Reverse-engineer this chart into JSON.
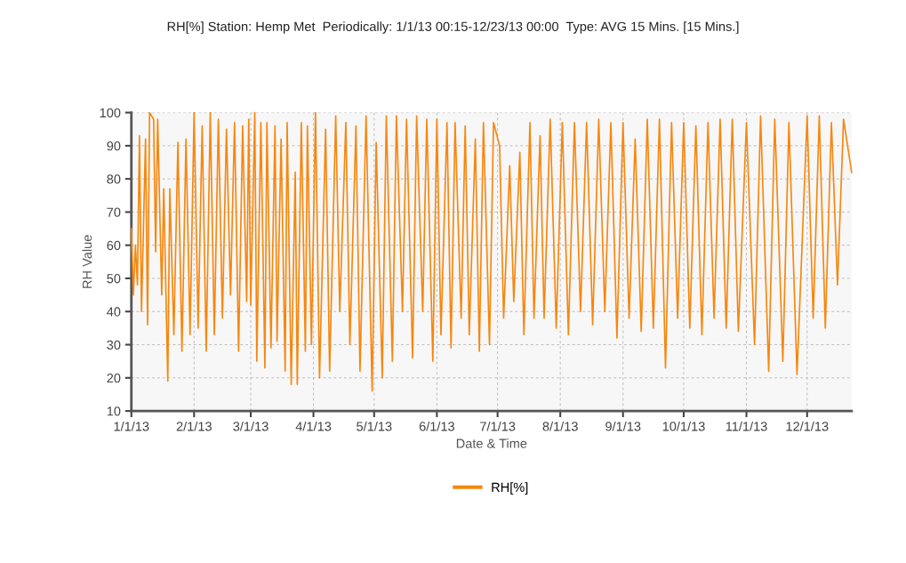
{
  "chart_data": {
    "type": "line",
    "title": "RH[%] Station: Hemp Met  Periodically: 1/1/13 00:15-12/23/13 00:00  Type: AVG 15 Mins. [15 Mins.]",
    "xlabel": "Date & Time",
    "ylabel": "RH Value",
    "x": [
      "2013-01-01",
      "2013-01-02",
      "2013-01-03",
      "2013-01-04",
      "2013-01-05",
      "2013-01-06",
      "2013-01-08",
      "2013-01-09",
      "2013-01-10",
      "2013-01-12",
      "2013-01-13",
      "2013-01-14",
      "2013-01-16",
      "2013-01-17",
      "2013-01-19",
      "2013-01-20",
      "2013-01-22",
      "2013-01-24",
      "2013-01-26",
      "2013-01-28",
      "2013-01-30",
      "2013-02-01",
      "2013-02-03",
      "2013-02-05",
      "2013-02-07",
      "2013-02-09",
      "2013-02-11",
      "2013-02-13",
      "2013-02-15",
      "2013-02-17",
      "2013-02-19",
      "2013-02-21",
      "2013-02-23",
      "2013-02-25",
      "2013-02-27",
      "2013-02-28",
      "2013-03-01",
      "2013-03-03",
      "2013-03-04",
      "2013-03-06",
      "2013-03-08",
      "2013-03-09",
      "2013-03-11",
      "2013-03-13",
      "2013-03-14",
      "2013-03-16",
      "2013-03-18",
      "2013-03-19",
      "2013-03-21",
      "2013-03-23",
      "2013-03-24",
      "2013-03-26",
      "2013-03-28",
      "2013-03-29",
      "2013-03-31",
      "2013-04-02",
      "2013-04-04",
      "2013-04-07",
      "2013-04-09",
      "2013-04-12",
      "2013-04-14",
      "2013-04-17",
      "2013-04-19",
      "2013-04-22",
      "2013-04-24",
      "2013-04-27",
      "2013-04-30",
      "2013-05-02",
      "2013-05-05",
      "2013-05-07",
      "2013-05-10",
      "2013-05-12",
      "2013-05-15",
      "2013-05-17",
      "2013-05-20",
      "2013-05-22",
      "2013-05-25",
      "2013-05-27",
      "2013-05-30",
      "2013-06-01",
      "2013-06-03",
      "2013-06-06",
      "2013-06-08",
      "2013-06-10",
      "2013-06-13",
      "2013-06-15",
      "2013-06-17",
      "2013-06-20",
      "2013-06-22",
      "2013-06-24",
      "2013-06-27",
      "2013-06-29",
      "2013-07-02",
      "2013-07-04",
      "2013-07-07",
      "2013-07-09",
      "2013-07-12",
      "2013-07-14",
      "2013-07-17",
      "2013-07-19",
      "2013-07-22",
      "2013-07-24",
      "2013-07-27",
      "2013-07-30",
      "2013-08-02",
      "2013-08-05",
      "2013-08-08",
      "2013-08-11",
      "2013-08-14",
      "2013-08-17",
      "2013-08-20",
      "2013-08-23",
      "2013-08-26",
      "2013-08-29",
      "2013-09-01",
      "2013-09-04",
      "2013-09-07",
      "2013-09-10",
      "2013-09-13",
      "2013-09-16",
      "2013-09-19",
      "2013-09-22",
      "2013-09-25",
      "2013-09-28",
      "2013-10-01",
      "2013-10-04",
      "2013-10-07",
      "2013-10-10",
      "2013-10-13",
      "2013-10-16",
      "2013-10-19",
      "2013-10-22",
      "2013-10-25",
      "2013-10-28",
      "2013-11-01",
      "2013-11-05",
      "2013-11-08",
      "2013-11-12",
      "2013-11-15",
      "2013-11-19",
      "2013-11-22",
      "2013-11-26",
      "2013-12-01",
      "2013-12-04",
      "2013-12-07",
      "2013-12-10",
      "2013-12-13",
      "2013-12-16",
      "2013-12-19",
      "2013-12-23"
    ],
    "series": [
      {
        "name": "RH[%]",
        "color": "#f7870f",
        "values": [
          65,
          45,
          60,
          48,
          93,
          40,
          92,
          36,
          100,
          98,
          58,
          98,
          45,
          77,
          19,
          77,
          33,
          91,
          28,
          92,
          33,
          100,
          35,
          96,
          28,
          100,
          33,
          98,
          38,
          95,
          45,
          97,
          28,
          96,
          43,
          98,
          42,
          100,
          25,
          97,
          23,
          97,
          29,
          96,
          31,
          92,
          22,
          97,
          18,
          82,
          18,
          97,
          28,
          96,
          30,
          100,
          20,
          95,
          22,
          99,
          40,
          97,
          30,
          96,
          22,
          99,
          16,
          91,
          20,
          99,
          25,
          99,
          40,
          98,
          26,
          99,
          40,
          98,
          25,
          98,
          33,
          97,
          29,
          97,
          38,
          96,
          33,
          92,
          28,
          97,
          30,
          97,
          90,
          38,
          84,
          43,
          88,
          33,
          97,
          38,
          93,
          38,
          98,
          35,
          97,
          33,
          97,
          40,
          97,
          36,
          98,
          40,
          97,
          32,
          97,
          38,
          92,
          34,
          98,
          35,
          98,
          23,
          97,
          38,
          97,
          35,
          96,
          33,
          97,
          38,
          98,
          35,
          98,
          34,
          97,
          30,
          99,
          22,
          98,
          25,
          97,
          21,
          99,
          38,
          99,
          35,
          97,
          48,
          98,
          82
        ]
      }
    ],
    "xlim": [
      "2013-01-01",
      "2013-12-23"
    ],
    "xticks": [
      {
        "value": "2013-01-01",
        "label": "1/1/13"
      },
      {
        "value": "2013-02-01",
        "label": "2/1/13"
      },
      {
        "value": "2013-03-01",
        "label": "3/1/13"
      },
      {
        "value": "2013-04-01",
        "label": "4/1/13"
      },
      {
        "value": "2013-05-01",
        "label": "5/1/13"
      },
      {
        "value": "2013-06-01",
        "label": "6/1/13"
      },
      {
        "value": "2013-07-01",
        "label": "7/1/13"
      },
      {
        "value": "2013-08-01",
        "label": "8/1/13"
      },
      {
        "value": "2013-09-01",
        "label": "9/1/13"
      },
      {
        "value": "2013-10-01",
        "label": "10/1/13"
      },
      {
        "value": "2013-11-01",
        "label": "11/1/13"
      },
      {
        "value": "2013-12-01",
        "label": "12/1/13"
      }
    ],
    "ylim": [
      10,
      100
    ],
    "yticks": [
      10,
      20,
      30,
      40,
      50,
      60,
      70,
      80,
      90,
      100
    ],
    "grid": true,
    "legend": "bottom",
    "marker": "none",
    "line_style": "solid"
  }
}
